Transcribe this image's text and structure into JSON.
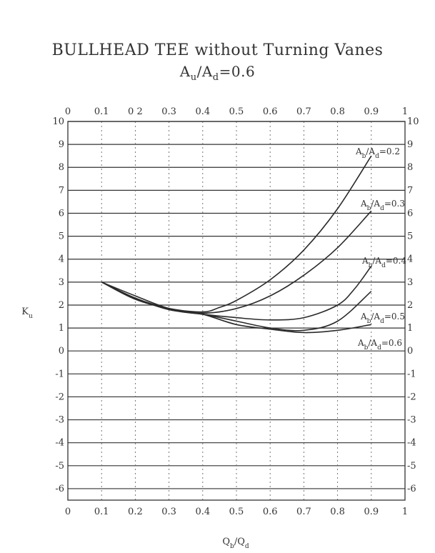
{
  "chart_data": {
    "type": "line",
    "title": "BULLHEAD TEE without Turning Vanes",
    "subtitle_parts": [
      "A",
      "u",
      "/A",
      "d",
      "=0.6"
    ],
    "xlabel_parts": [
      "Q",
      "b",
      "/Q",
      "d"
    ],
    "ylabel_parts": [
      "K",
      "u"
    ],
    "xlim": [
      0,
      1
    ],
    "ylim": [
      -6.5,
      10
    ],
    "x_ticks_bottom": [
      "0",
      "0.1",
      "0.2",
      "0.3",
      "0.4",
      "0.5",
      "0.6",
      "0.7",
      "0.8",
      "0.9",
      "1"
    ],
    "x_ticks_top": [
      "0",
      "0.1",
      "0 2",
      "0.3",
      "0.4",
      "0.5",
      "0.6",
      "0.7",
      "0.8",
      "0.9",
      "1"
    ],
    "y_ticks": [
      "10",
      "9",
      "8",
      "7",
      "6",
      "5",
      "4",
      "3",
      "2",
      "1",
      "0",
      "-1",
      "-2",
      "-3",
      "-4",
      "-5",
      "-6"
    ],
    "grid": "horizontal solid, vertical dotted",
    "series": [
      {
        "name": "Ab/Ad=0.2",
        "label_parts": [
          "A",
          "b",
          "/A",
          "d",
          "=0.2"
        ],
        "x": [
          0.1,
          0.2,
          0.3,
          0.4,
          0.45,
          0.5,
          0.6,
          0.7,
          0.8,
          0.9
        ],
        "y": [
          3.0,
          2.25,
          1.85,
          1.7,
          1.9,
          2.2,
          3.1,
          4.4,
          6.2,
          8.5
        ]
      },
      {
        "name": "Ab/Ad=0.3",
        "label_parts": [
          "A",
          "b",
          "/A",
          "d",
          "=0.3"
        ],
        "x": [
          0.1,
          0.2,
          0.3,
          0.4,
          0.5,
          0.6,
          0.7,
          0.8,
          0.9
        ],
        "y": [
          3.0,
          2.3,
          1.85,
          1.65,
          1.85,
          2.4,
          3.3,
          4.5,
          6.1
        ]
      },
      {
        "name": "Ab/Ad=0.4",
        "label_parts": [
          "A",
          "b",
          "/A",
          "d",
          "=0.4"
        ],
        "x": [
          0.1,
          0.2,
          0.3,
          0.4,
          0.5,
          0.6,
          0.7,
          0.8,
          0.85,
          0.9
        ],
        "y": [
          3.0,
          2.3,
          1.8,
          1.6,
          1.45,
          1.35,
          1.45,
          2.0,
          2.7,
          3.7
        ]
      },
      {
        "name": "Ab/Ad=0.5",
        "label_parts": [
          "A",
          "b",
          "/A",
          "d",
          "=0.5"
        ],
        "x": [
          0.1,
          0.2,
          0.3,
          0.4,
          0.5,
          0.6,
          0.7,
          0.8,
          0.9
        ],
        "y": [
          3.0,
          2.3,
          1.8,
          1.6,
          1.3,
          1.0,
          0.9,
          1.3,
          2.6
        ]
      },
      {
        "name": "Ab/Ad=0.6",
        "label_parts": [
          "A",
          "b",
          "/A",
          "d",
          "=0.6"
        ],
        "x": [
          0.1,
          0.2,
          0.3,
          0.4,
          0.5,
          0.6,
          0.7,
          0.8,
          0.9
        ],
        "y": [
          3.0,
          2.4,
          1.85,
          1.6,
          1.15,
          0.95,
          0.8,
          0.9,
          1.15
        ]
      }
    ]
  }
}
